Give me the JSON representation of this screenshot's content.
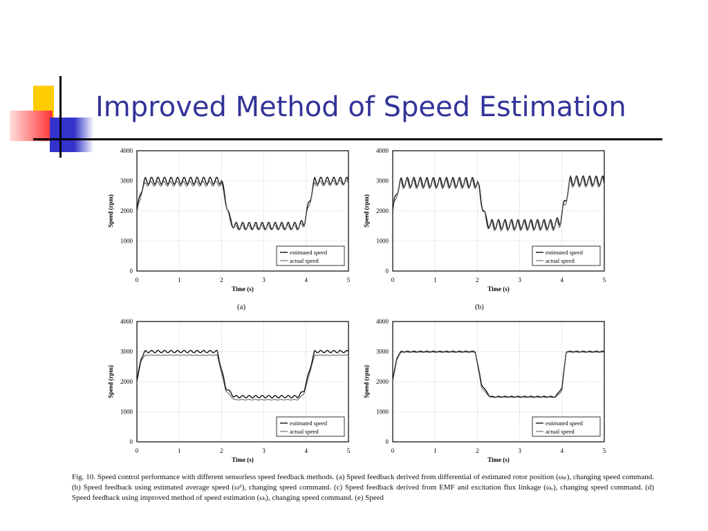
{
  "slide": {
    "title": "Improved Method of Speed Estimation",
    "decoration_colors": {
      "yellow": "#ffcc00",
      "red": "#ff3333",
      "blue": "#3333cc",
      "line": "#000000"
    }
  },
  "chart_data": [
    {
      "type": "line",
      "panel": "a",
      "xlabel": "Time (s)",
      "ylabel": "Speed (rpm)",
      "xlim": [
        0,
        5
      ],
      "ylim": [
        0,
        4000
      ],
      "xticks": [
        "0",
        "1",
        "2",
        "3",
        "4",
        "5"
      ],
      "yticks": [
        "0",
        "1000",
        "2000",
        "3000",
        "4000"
      ],
      "grid": true,
      "legend_position": "bottom-right",
      "series": [
        {
          "name": "estimated speed",
          "x": [
            0,
            0.1,
            0.2,
            2,
            2.2,
            2.3,
            3.8,
            3.95,
            4.2,
            5
          ],
          "y": [
            1950,
            2700,
            3000,
            3000,
            1700,
            1500,
            1500,
            1600,
            3000,
            3000
          ],
          "ripple": 120
        },
        {
          "name": "actual speed",
          "x": [
            0,
            0.1,
            0.2,
            2,
            2.2,
            2.3,
            3.8,
            3.95,
            4.2,
            5
          ],
          "y": [
            1900,
            2600,
            2900,
            2900,
            1650,
            1450,
            1450,
            1550,
            2900,
            2950
          ],
          "ripple": 80
        }
      ],
      "subcaption": "(a)"
    },
    {
      "type": "line",
      "panel": "b",
      "xlabel": "Time (s)",
      "ylabel": "Speed (rpm)",
      "xlim": [
        0,
        5
      ],
      "ylim": [
        0,
        4000
      ],
      "xticks": [
        "0",
        "1",
        "2",
        "3",
        "4",
        "5"
      ],
      "yticks": [
        "0",
        "1000",
        "2000",
        "3000",
        "4000"
      ],
      "grid": true,
      "legend_position": "bottom-right",
      "series": [
        {
          "name": "estimated speed",
          "x": [
            0,
            0.1,
            0.2,
            2,
            2.2,
            2.3,
            3.8,
            3.95,
            4.2,
            5
          ],
          "y": [
            1950,
            2700,
            2950,
            2950,
            1700,
            1550,
            1550,
            1650,
            3000,
            3000
          ],
          "ripple": 160
        },
        {
          "name": "actual speed",
          "x": [
            0,
            0.1,
            0.2,
            2,
            2.2,
            2.3,
            3.8,
            3.95,
            4.2,
            5
          ],
          "y": [
            1900,
            2650,
            2900,
            2900,
            1650,
            1500,
            1500,
            1600,
            2950,
            2950
          ],
          "ripple": 160
        }
      ],
      "subcaption": "(b)"
    },
    {
      "type": "line",
      "panel": "c",
      "xlabel": "Time (s)",
      "ylabel": "Speed (rpm)",
      "xlim": [
        0,
        5
      ],
      "ylim": [
        0,
        4000
      ],
      "xticks": [
        "0",
        "1",
        "2",
        "3",
        "4",
        "5"
      ],
      "yticks": [
        "0",
        "1000",
        "2000",
        "3000",
        "4000"
      ],
      "grid": true,
      "legend_position": "bottom-right",
      "series": [
        {
          "name": "estimated speed",
          "x": [
            0,
            0.1,
            0.2,
            1.9,
            2.1,
            2.3,
            3.8,
            3.95,
            4.2,
            5
          ],
          "y": [
            2000,
            2800,
            3000,
            3000,
            1800,
            1500,
            1500,
            1700,
            3000,
            3000
          ],
          "ripple": 40
        },
        {
          "name": "actual speed",
          "x": [
            0,
            0.1,
            0.2,
            1.9,
            2.1,
            2.3,
            3.8,
            3.95,
            4.2,
            5
          ],
          "y": [
            1950,
            2700,
            2880,
            2880,
            1700,
            1400,
            1400,
            1600,
            2880,
            2880
          ],
          "ripple": 10
        }
      ],
      "subcaption": ""
    },
    {
      "type": "line",
      "panel": "d",
      "xlabel": "Time (s)",
      "ylabel": "Speed (rpm)",
      "xlim": [
        0,
        5
      ],
      "ylim": [
        0,
        4000
      ],
      "xticks": [
        "0",
        "1",
        "2",
        "3",
        "4",
        "5"
      ],
      "yticks": [
        "0",
        "1000",
        "2000",
        "3000",
        "4000"
      ],
      "grid": true,
      "legend_position": "bottom-right",
      "series": [
        {
          "name": "estimated speed",
          "x": [
            0,
            0.1,
            0.2,
            1.95,
            2.1,
            2.3,
            3.85,
            4.0,
            4.1,
            5
          ],
          "y": [
            2050,
            2800,
            3000,
            3000,
            1900,
            1500,
            1500,
            1800,
            3000,
            3000
          ],
          "ripple": 15
        },
        {
          "name": "actual speed",
          "x": [
            0,
            0.1,
            0.2,
            1.95,
            2.1,
            2.3,
            3.85,
            4.0,
            4.1,
            5
          ],
          "y": [
            2000,
            2750,
            2980,
            2980,
            1800,
            1480,
            1480,
            1700,
            2980,
            2980
          ],
          "ripple": 8
        }
      ],
      "subcaption": ""
    }
  ],
  "caption": "Fig. 10.    Speed control performance with different sensorless speed feedback methods. (a) Speed feedback derived from differential of estimated rotor position (ωₚ), changing speed command. (b) Speed feedback using estimated average speed (ωᵈ), changing speed command. (c) Speed feedback derived from EMF and excitation flux linkage (ωₑ), changing speed command. (d) Speed feedback using improved method of speed estimation (ωᵢ), changing speed command. (e) Speed"
}
